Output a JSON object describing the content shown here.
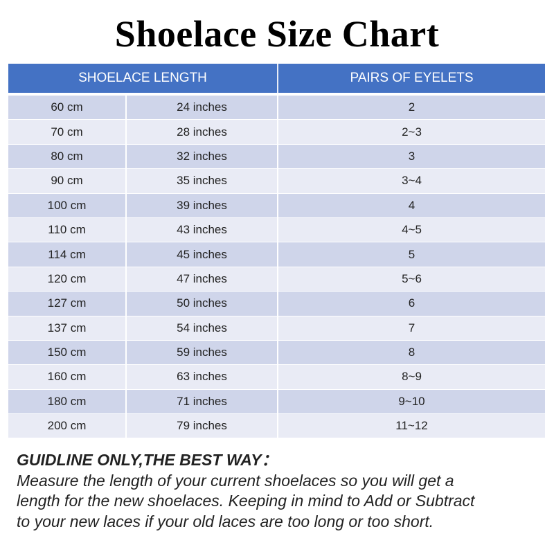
{
  "title": "Shoelace Size Chart",
  "table": {
    "headers": [
      "SHOELACE LENGTH",
      "PAIRS OF EYELETS"
    ],
    "rows": [
      [
        "60  cm",
        "24 inches",
        "2"
      ],
      [
        "70  cm",
        "28 inches",
        "2~3"
      ],
      [
        "80  cm",
        "32 inches",
        "3"
      ],
      [
        "90  cm",
        "35 inches",
        "3~4"
      ],
      [
        "100 cm",
        "39 inches",
        "4"
      ],
      [
        "110 cm",
        "43 inches",
        "4~5"
      ],
      [
        "114 cm",
        "45 inches",
        "5"
      ],
      [
        "120 cm",
        "47 inches",
        "5~6"
      ],
      [
        "127 cm",
        "50 inches",
        "6"
      ],
      [
        "137 cm",
        "54 inches",
        "7"
      ],
      [
        "150 cm",
        "59 inches",
        "8"
      ],
      [
        "160 cm",
        "63 inches",
        "8~9"
      ],
      [
        "180 cm",
        "71 inches",
        "9~10"
      ],
      [
        "200 cm",
        "79 inches",
        "11~12"
      ]
    ]
  },
  "footer": {
    "heading": "GUIDLINE ONLY,THE BEST WAY：",
    "lines": [
      "Measure the length of your current shoelaces so you will get a",
      "length for the new shoelaces. Keeping in mind to Add or Subtract",
      "to your new laces if your old laces are too long or too short."
    ]
  },
  "colors": {
    "header": "#4472c4",
    "row_dark": "#cfd5ea",
    "row_light": "#e9ebf5"
  }
}
